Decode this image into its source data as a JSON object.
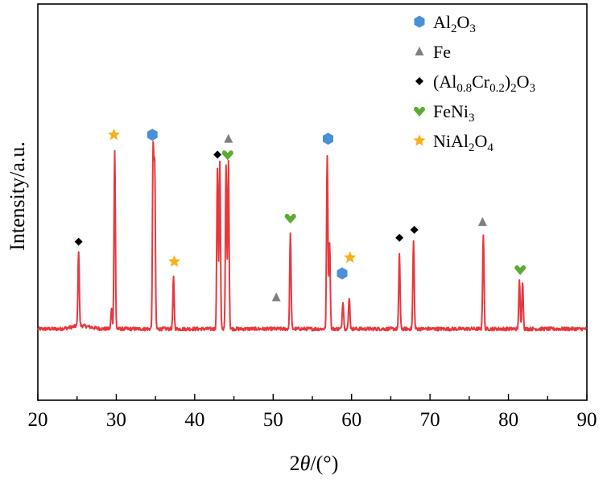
{
  "chart_data": {
    "type": "line",
    "xlabel": "2θ/(°)",
    "ylabel": "Intensity/a.u.",
    "xlim": [
      20,
      90
    ],
    "ylim": [
      0,
      100
    ],
    "x_ticks": [
      "20",
      "30",
      "40",
      "50",
      "60",
      "70",
      "80",
      "90"
    ],
    "y_ticks": [],
    "grid": false,
    "legend_position": "top-right",
    "baseline": 18,
    "series": [
      {
        "color": "#e8383d",
        "peaks": [
          {
            "x": 25.2,
            "y": 37
          },
          {
            "x": 29.4,
            "y": 23
          },
          {
            "x": 29.8,
            "y": 63
          },
          {
            "x": 34.7,
            "y": 63
          },
          {
            "x": 34.9,
            "y": 58
          },
          {
            "x": 37.3,
            "y": 31
          },
          {
            "x": 42.9,
            "y": 58
          },
          {
            "x": 43.2,
            "y": 60
          },
          {
            "x": 44.0,
            "y": 59
          },
          {
            "x": 44.3,
            "y": 60
          },
          {
            "x": 52.2,
            "y": 42
          },
          {
            "x": 56.9,
            "y": 62
          },
          {
            "x": 57.2,
            "y": 40
          },
          {
            "x": 58.9,
            "y": 25
          },
          {
            "x": 59.7,
            "y": 26
          },
          {
            "x": 66.1,
            "y": 37
          },
          {
            "x": 67.9,
            "y": 40
          },
          {
            "x": 76.8,
            "y": 42
          },
          {
            "x": 81.4,
            "y": 30
          },
          {
            "x": 81.8,
            "y": 30
          }
        ]
      }
    ],
    "legend": [
      {
        "name": "Al2O3",
        "shape": "pentagon",
        "color": "#4a90d9"
      },
      {
        "name": "Fe",
        "shape": "triangle",
        "color": "#7f7f7f"
      },
      {
        "name": "(Al0.8Cr0.2)2O3",
        "shape": "diamond",
        "color": "#000000"
      },
      {
        "name": "FeNi3",
        "shape": "heart",
        "color": "#5dab32"
      },
      {
        "name": "NiAl2O4",
        "shape": "star",
        "color": "#f5b21a"
      }
    ],
    "markers": [
      {
        "x": 25.2,
        "y": 40,
        "phase": "(Al0.8Cr0.2)2O3"
      },
      {
        "x": 29.7,
        "y": 67,
        "phase": "NiAl2O4"
      },
      {
        "x": 34.6,
        "y": 67,
        "phase": "Al2O3"
      },
      {
        "x": 37.4,
        "y": 35,
        "phase": "NiAl2O4"
      },
      {
        "x": 42.9,
        "y": 62,
        "phase": "(Al0.8Cr0.2)2O3"
      },
      {
        "x": 44.3,
        "y": 66,
        "phase": "Fe"
      },
      {
        "x": 44.2,
        "y": 62,
        "phase": "FeNi3"
      },
      {
        "x": 50.4,
        "y": 26,
        "phase": "Fe"
      },
      {
        "x": 52.2,
        "y": 46,
        "phase": "FeNi3"
      },
      {
        "x": 57.0,
        "y": 66,
        "phase": "Al2O3"
      },
      {
        "x": 58.8,
        "y": 32,
        "phase": "Al2O3"
      },
      {
        "x": 59.8,
        "y": 36,
        "phase": "NiAl2O4"
      },
      {
        "x": 66.1,
        "y": 41,
        "phase": "(Al0.8Cr0.2)2O3"
      },
      {
        "x": 68.0,
        "y": 43,
        "phase": "(Al0.8Cr0.2)2O3"
      },
      {
        "x": 76.7,
        "y": 45,
        "phase": "Fe"
      },
      {
        "x": 81.5,
        "y": 33,
        "phase": "FeNi3"
      }
    ]
  },
  "legend_labels": [
    {
      "base": "Al",
      "parts": [
        [
          "2",
          "sub"
        ],
        [
          "O",
          ""
        ],
        [
          "3",
          "sub"
        ]
      ]
    },
    {
      "base": "Fe",
      "parts": []
    },
    {
      "base": "(Al",
      "parts": [
        [
          "0.8",
          "sub"
        ],
        [
          "Cr",
          ""
        ],
        [
          "0.2",
          "sub"
        ],
        [
          ")",
          ""
        ],
        [
          "2",
          "sub"
        ],
        [
          "O",
          ""
        ],
        [
          "3",
          "sub"
        ]
      ]
    },
    {
      "base": "FeNi",
      "parts": [
        [
          "3",
          "sub"
        ]
      ]
    },
    {
      "base": "NiAl",
      "parts": [
        [
          "2",
          "sub"
        ],
        [
          "O",
          ""
        ],
        [
          "4",
          "sub"
        ]
      ]
    }
  ],
  "axis_titles": {
    "x_main": "2",
    "x_theta": "θ",
    "x_rest": "/(°)",
    "y": "Intensity/a.u."
  }
}
